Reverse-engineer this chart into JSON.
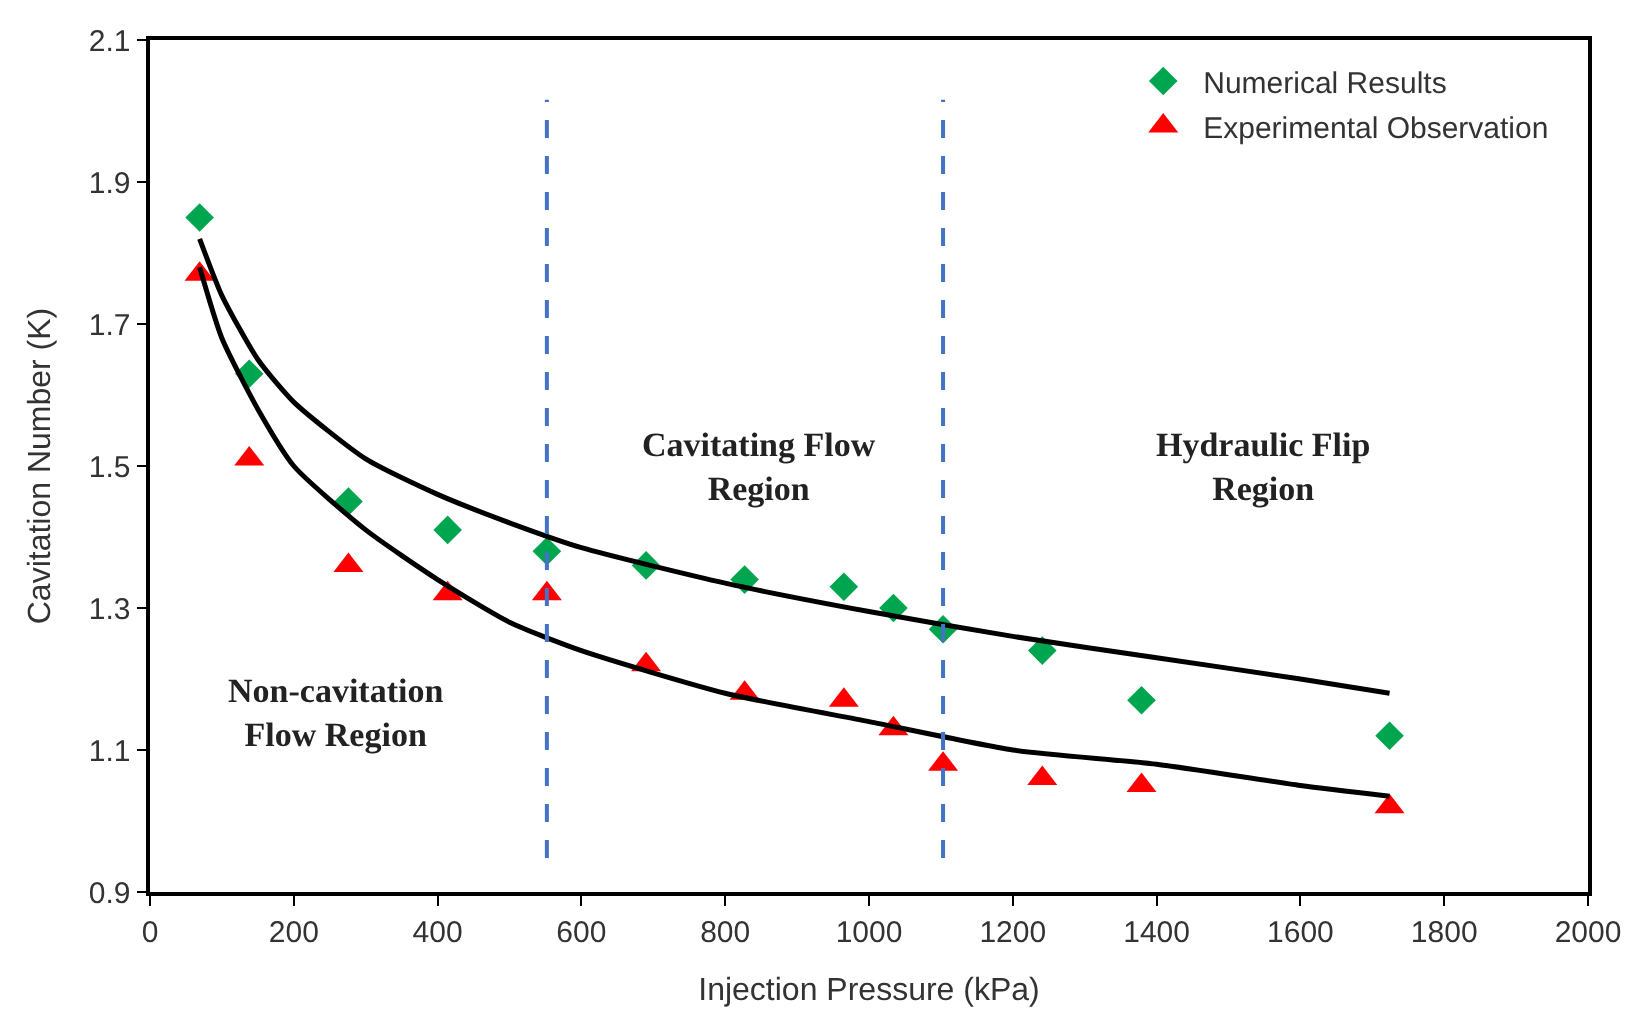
{
  "chart_data": {
    "type": "scatter",
    "xlabel": "Injection Pressure (kPa)",
    "ylabel": "Cavitation Number (K)",
    "xlim": [
      0,
      2000
    ],
    "xticks": [
      0,
      200,
      400,
      600,
      800,
      1000,
      1200,
      1400,
      1600,
      1800,
      2000
    ],
    "ylim": [
      0.9,
      2.1
    ],
    "yticks": [
      0.9,
      1.1,
      1.3,
      1.5,
      1.7,
      1.9,
      2.1
    ],
    "legend": "top right",
    "x": [
      69,
      138,
      276,
      414,
      552,
      690,
      827,
      965,
      1034,
      1103,
      1241,
      1379,
      1724
    ],
    "series": [
      {
        "name": "Numerical Results",
        "color": "#00a550",
        "marker": "diamond",
        "values": [
          1.85,
          1.63,
          1.45,
          1.41,
          1.38,
          1.36,
          1.34,
          1.33,
          1.3,
          1.27,
          1.24,
          1.17,
          1.12
        ]
      },
      {
        "name": "Experimental Observation",
        "color": "#ff0000",
        "marker": "triangle",
        "values": [
          1.77,
          1.51,
          1.36,
          1.32,
          1.32,
          1.22,
          1.18,
          1.17,
          1.13,
          1.08,
          1.06,
          1.05,
          1.02
        ]
      },
      {
        "type": "line",
        "color": "#000000",
        "marker": "none",
        "line_style": "solid",
        "x": [
          69,
          100,
          150,
          200,
          300,
          400,
          500,
          600,
          800,
          1000,
          1200,
          1400,
          1600,
          1724
        ],
        "values": [
          1.82,
          1.74,
          1.65,
          1.59,
          1.51,
          1.46,
          1.42,
          1.385,
          1.335,
          1.295,
          1.26,
          1.23,
          1.2,
          1.18
        ]
      },
      {
        "type": "line",
        "color": "#000000",
        "marker": "none",
        "line_style": "solid",
        "x": [
          69,
          100,
          150,
          200,
          300,
          400,
          500,
          600,
          800,
          1000,
          1200,
          1400,
          1600,
          1724
        ],
        "values": [
          1.78,
          1.68,
          1.58,
          1.5,
          1.41,
          1.34,
          1.28,
          1.24,
          1.18,
          1.14,
          1.1,
          1.08,
          1.05,
          1.035
        ]
      }
    ],
    "ref_lines": [
      {
        "axis": "x",
        "value": 552,
        "color": "#4472c4",
        "line_style": "dashed"
      },
      {
        "axis": "x",
        "value": 1103,
        "color": "#4472c4",
        "line_style": "dashed"
      }
    ],
    "annotations": [
      "Non-cavitation\nFlow Region",
      "Cavitating Flow\nRegion",
      "Hydraulic Flip\nRegion"
    ]
  }
}
